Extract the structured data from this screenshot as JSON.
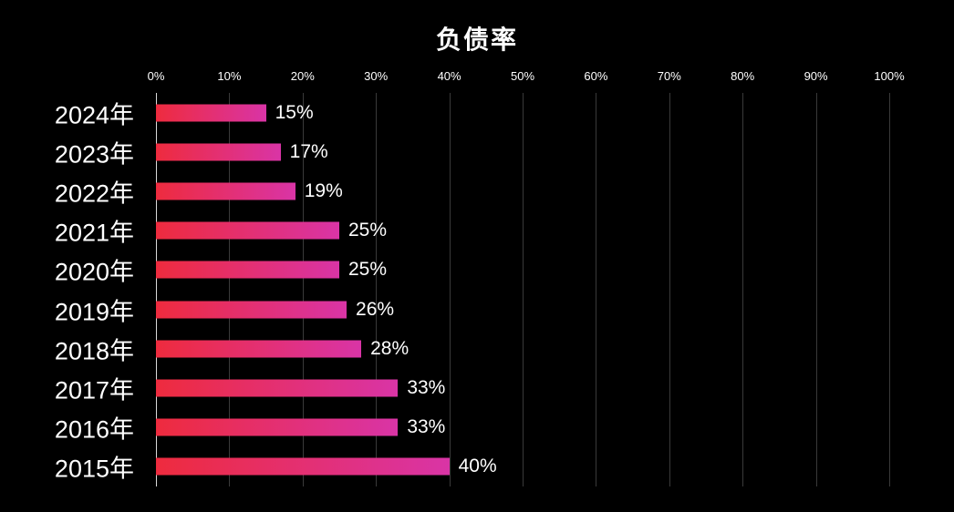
{
  "chart_data": {
    "type": "bar",
    "orientation": "horizontal",
    "title": "负债率",
    "categories": [
      "2024年",
      "2023年",
      "2022年",
      "2021年",
      "2020年",
      "2019年",
      "2018年",
      "2017年",
      "2016年",
      "2015年"
    ],
    "values": [
      15,
      17,
      19,
      25,
      25,
      26,
      28,
      33,
      33,
      40
    ],
    "labels": [
      "15%",
      "17%",
      "19%",
      "25%",
      "25%",
      "26%",
      "28%",
      "33%",
      "33%",
      "40%"
    ],
    "xlim": [
      0,
      100
    ],
    "x_ticks": [
      "0%",
      "10%",
      "20%",
      "30%",
      "40%",
      "50%",
      "60%",
      "70%",
      "80%",
      "90%",
      "100%"
    ],
    "grid": true,
    "legend": "none",
    "colors": {
      "background": "#000000",
      "bar_gradient_start": "#ee2b3e",
      "bar_gradient_end": "#d934a6",
      "gridline": "#3a3a3a",
      "axis_line": "#d9d9d9",
      "text": "#ffffff"
    }
  }
}
